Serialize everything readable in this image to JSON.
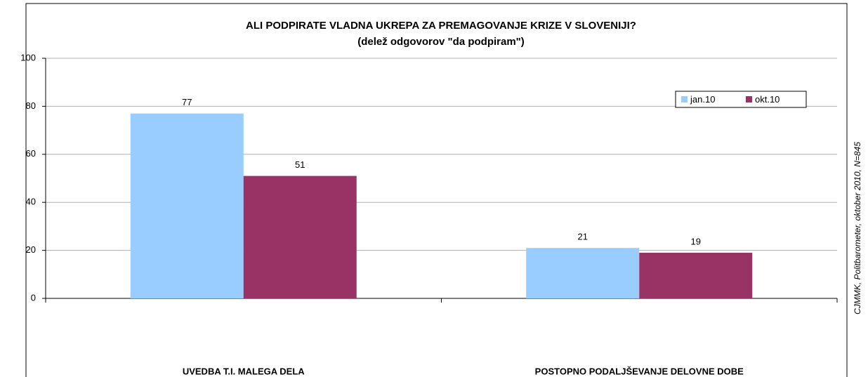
{
  "chart_data": {
    "type": "bar",
    "title": "ALI PODPIRATE VLADNA UKREPA ZA PREMAGOVANJE KRIZE V SLOVENIJI?",
    "subtitle": "(delež odgovorov \"da podpiram\")",
    "source": "CJMMK, Politbarometer, oktober 2010, N=845",
    "categories": [
      "UVEDBA T.I. MALEGA DELA",
      "POSTOPNO PODALJŠEVANJE DELOVNE DOBE"
    ],
    "series": [
      {
        "name": "jan.10",
        "color": "#99ccff",
        "values": [
          77,
          21
        ]
      },
      {
        "name": "okt.10",
        "color": "#993366",
        "values": [
          51,
          19
        ]
      }
    ],
    "ylim": [
      0,
      100
    ],
    "yticks": [
      0,
      20,
      40,
      60,
      80,
      100
    ],
    "grid": true,
    "legend": "top-right"
  }
}
